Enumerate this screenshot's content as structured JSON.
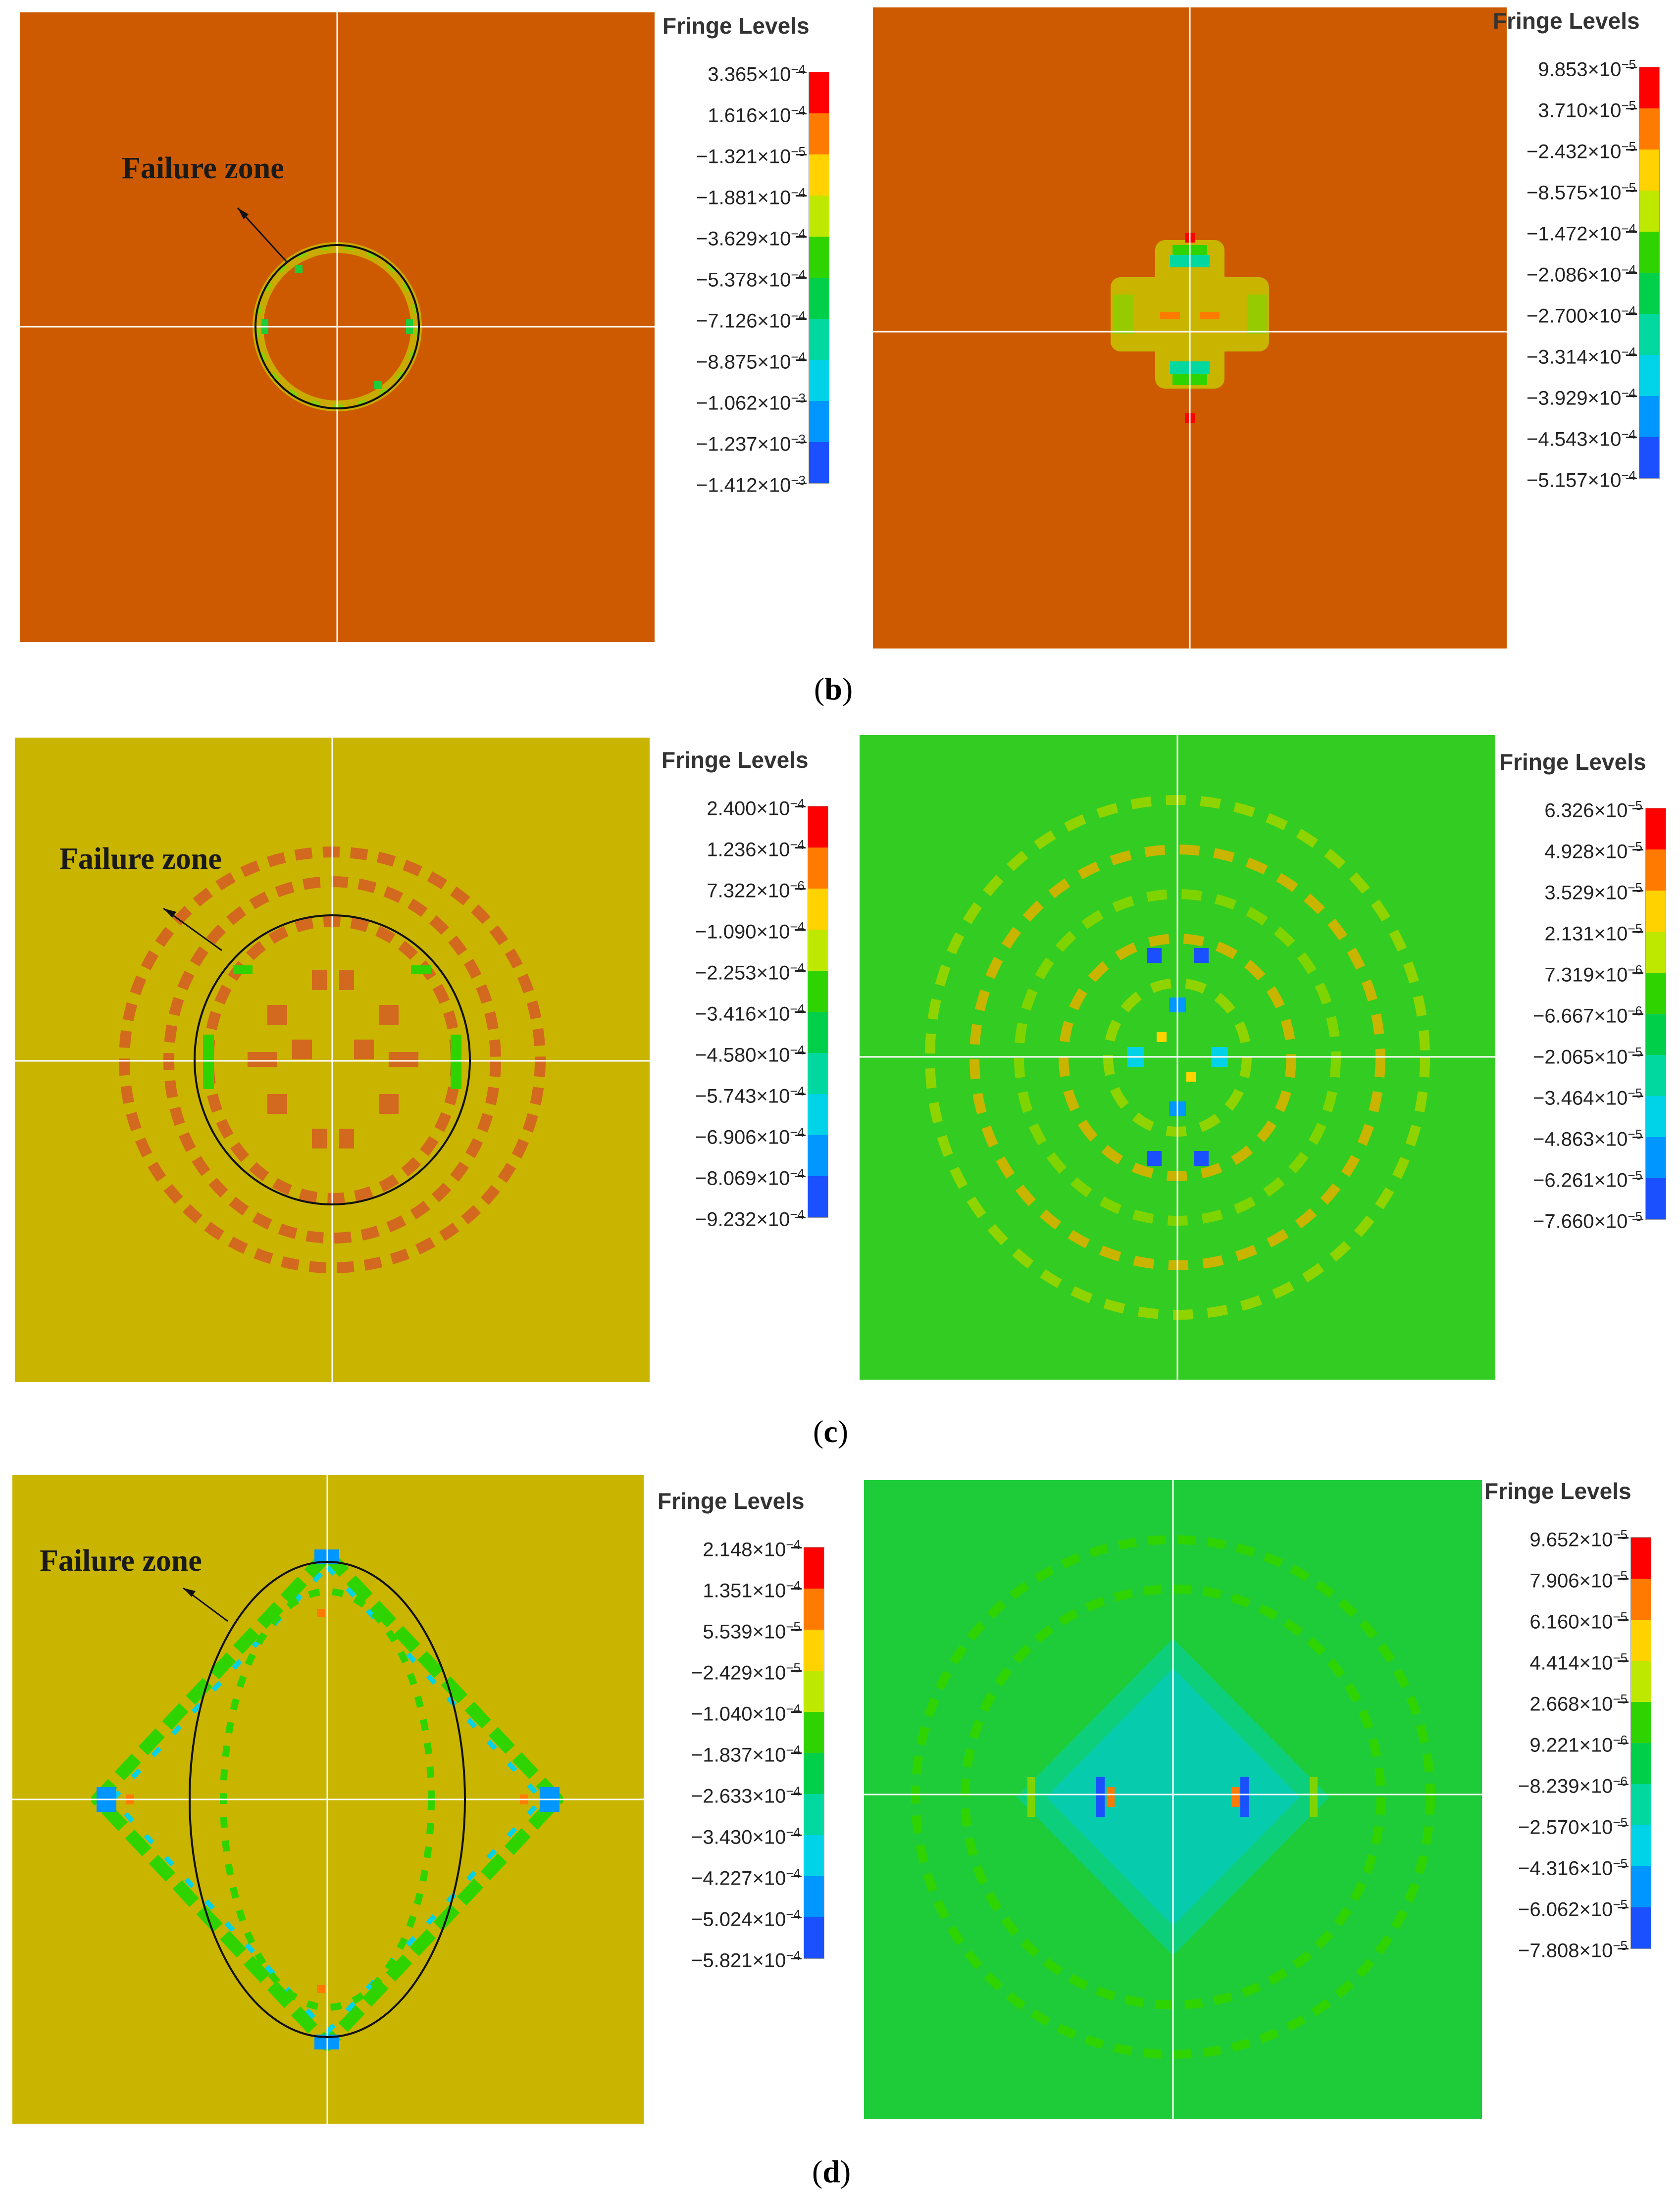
{
  "failure_label": "Failure zone",
  "legend_title": "Fringe Levels",
  "colors": {
    "scale": [
      "#ff0000",
      "#ff7a00",
      "#ffd200",
      "#bfe800",
      "#2fd300",
      "#00cf4a",
      "#00d8a0",
      "#00d2e8",
      "#0096ff",
      "#1a50ff",
      "#0000ff"
    ],
    "orange_bg": "#cd5a00",
    "olive_bg": "#c9b400",
    "green_bg": "#33cc22",
    "green_bg2": "#1ecc3a",
    "crosshair": "#ffffff",
    "ellipse": "#111111"
  },
  "rows": [
    {
      "caption_prefix": "(",
      "caption_letter": "b",
      "caption_suffix": ")",
      "left_values": [
        "3.365×10",
        "1.616×10",
        "−1.321×10",
        "−1.881×10",
        "−3.629×10",
        "−5.378×10",
        "−7.126×10",
        "−8.875×10",
        "−1.062×10",
        "−1.237×10",
        "−1.412×10"
      ],
      "left_exps": [
        "−4",
        "−4",
        "−5",
        "−4",
        "−4",
        "−4",
        "−4",
        "−4",
        "−3",
        "−3",
        "−3"
      ],
      "right_values": [
        "9.853×10",
        "3.710×10",
        "−2.432×10",
        "−8.575×10",
        "−1.472×10",
        "−2.086×10",
        "−2.700×10",
        "−3.314×10",
        "−3.929×10",
        "−4.543×10",
        "−5.157×10"
      ],
      "right_exps": [
        "−5",
        "−5",
        "−5",
        "−5",
        "−4",
        "−4",
        "−4",
        "−4",
        "−4",
        "−4",
        "−4"
      ]
    },
    {
      "caption_prefix": "(",
      "caption_letter": "c",
      "caption_suffix": ")",
      "left_values": [
        "2.400×10",
        "1.236×10",
        "7.322×10",
        "−1.090×10",
        "−2.253×10",
        "−3.416×10",
        "−4.580×10",
        "−5.743×10",
        "−6.906×10",
        "−8.069×10",
        "−9.232×10"
      ],
      "left_exps": [
        "−4",
        "−4",
        "−6",
        "−4",
        "−4",
        "−4",
        "−4",
        "−4",
        "−4",
        "−4",
        "−4"
      ],
      "right_values": [
        "6.326×10",
        "4.928×10",
        "3.529×10",
        "2.131×10",
        "7.319×10",
        "−6.667×10",
        "−2.065×10",
        "−3.464×10",
        "−4.863×10",
        "−6.261×10",
        "−7.660×10"
      ],
      "right_exps": [
        "−5",
        "−5",
        "−5",
        "−5",
        "−6",
        "−6",
        "−5",
        "−5",
        "−5",
        "−5",
        "−5"
      ]
    },
    {
      "caption_prefix": "(",
      "caption_letter": "d",
      "caption_suffix": ")",
      "left_values": [
        "2.148×10",
        "1.351×10",
        "5.539×10",
        "−2.429×10",
        "−1.040×10",
        "−1.837×10",
        "−2.633×10",
        "−3.430×10",
        "−4.227×10",
        "−5.024×10",
        "−5.821×10"
      ],
      "left_exps": [
        "−4",
        "−4",
        "−5",
        "−5",
        "−4",
        "−4",
        "−4",
        "−4",
        "−4",
        "−4",
        "−4"
      ],
      "right_values": [
        "9.652×10",
        "7.906×10",
        "6.160×10",
        "4.414×10",
        "2.668×10",
        "9.221×10",
        "−8.239×10",
        "−2.570×10",
        "−4.316×10",
        "−6.062×10",
        "−7.808×10"
      ],
      "right_exps": [
        "−5",
        "−5",
        "−5",
        "−5",
        "−5",
        "−6",
        "−6",
        "−5",
        "−5",
        "−5",
        "−5"
      ]
    }
  ]
}
